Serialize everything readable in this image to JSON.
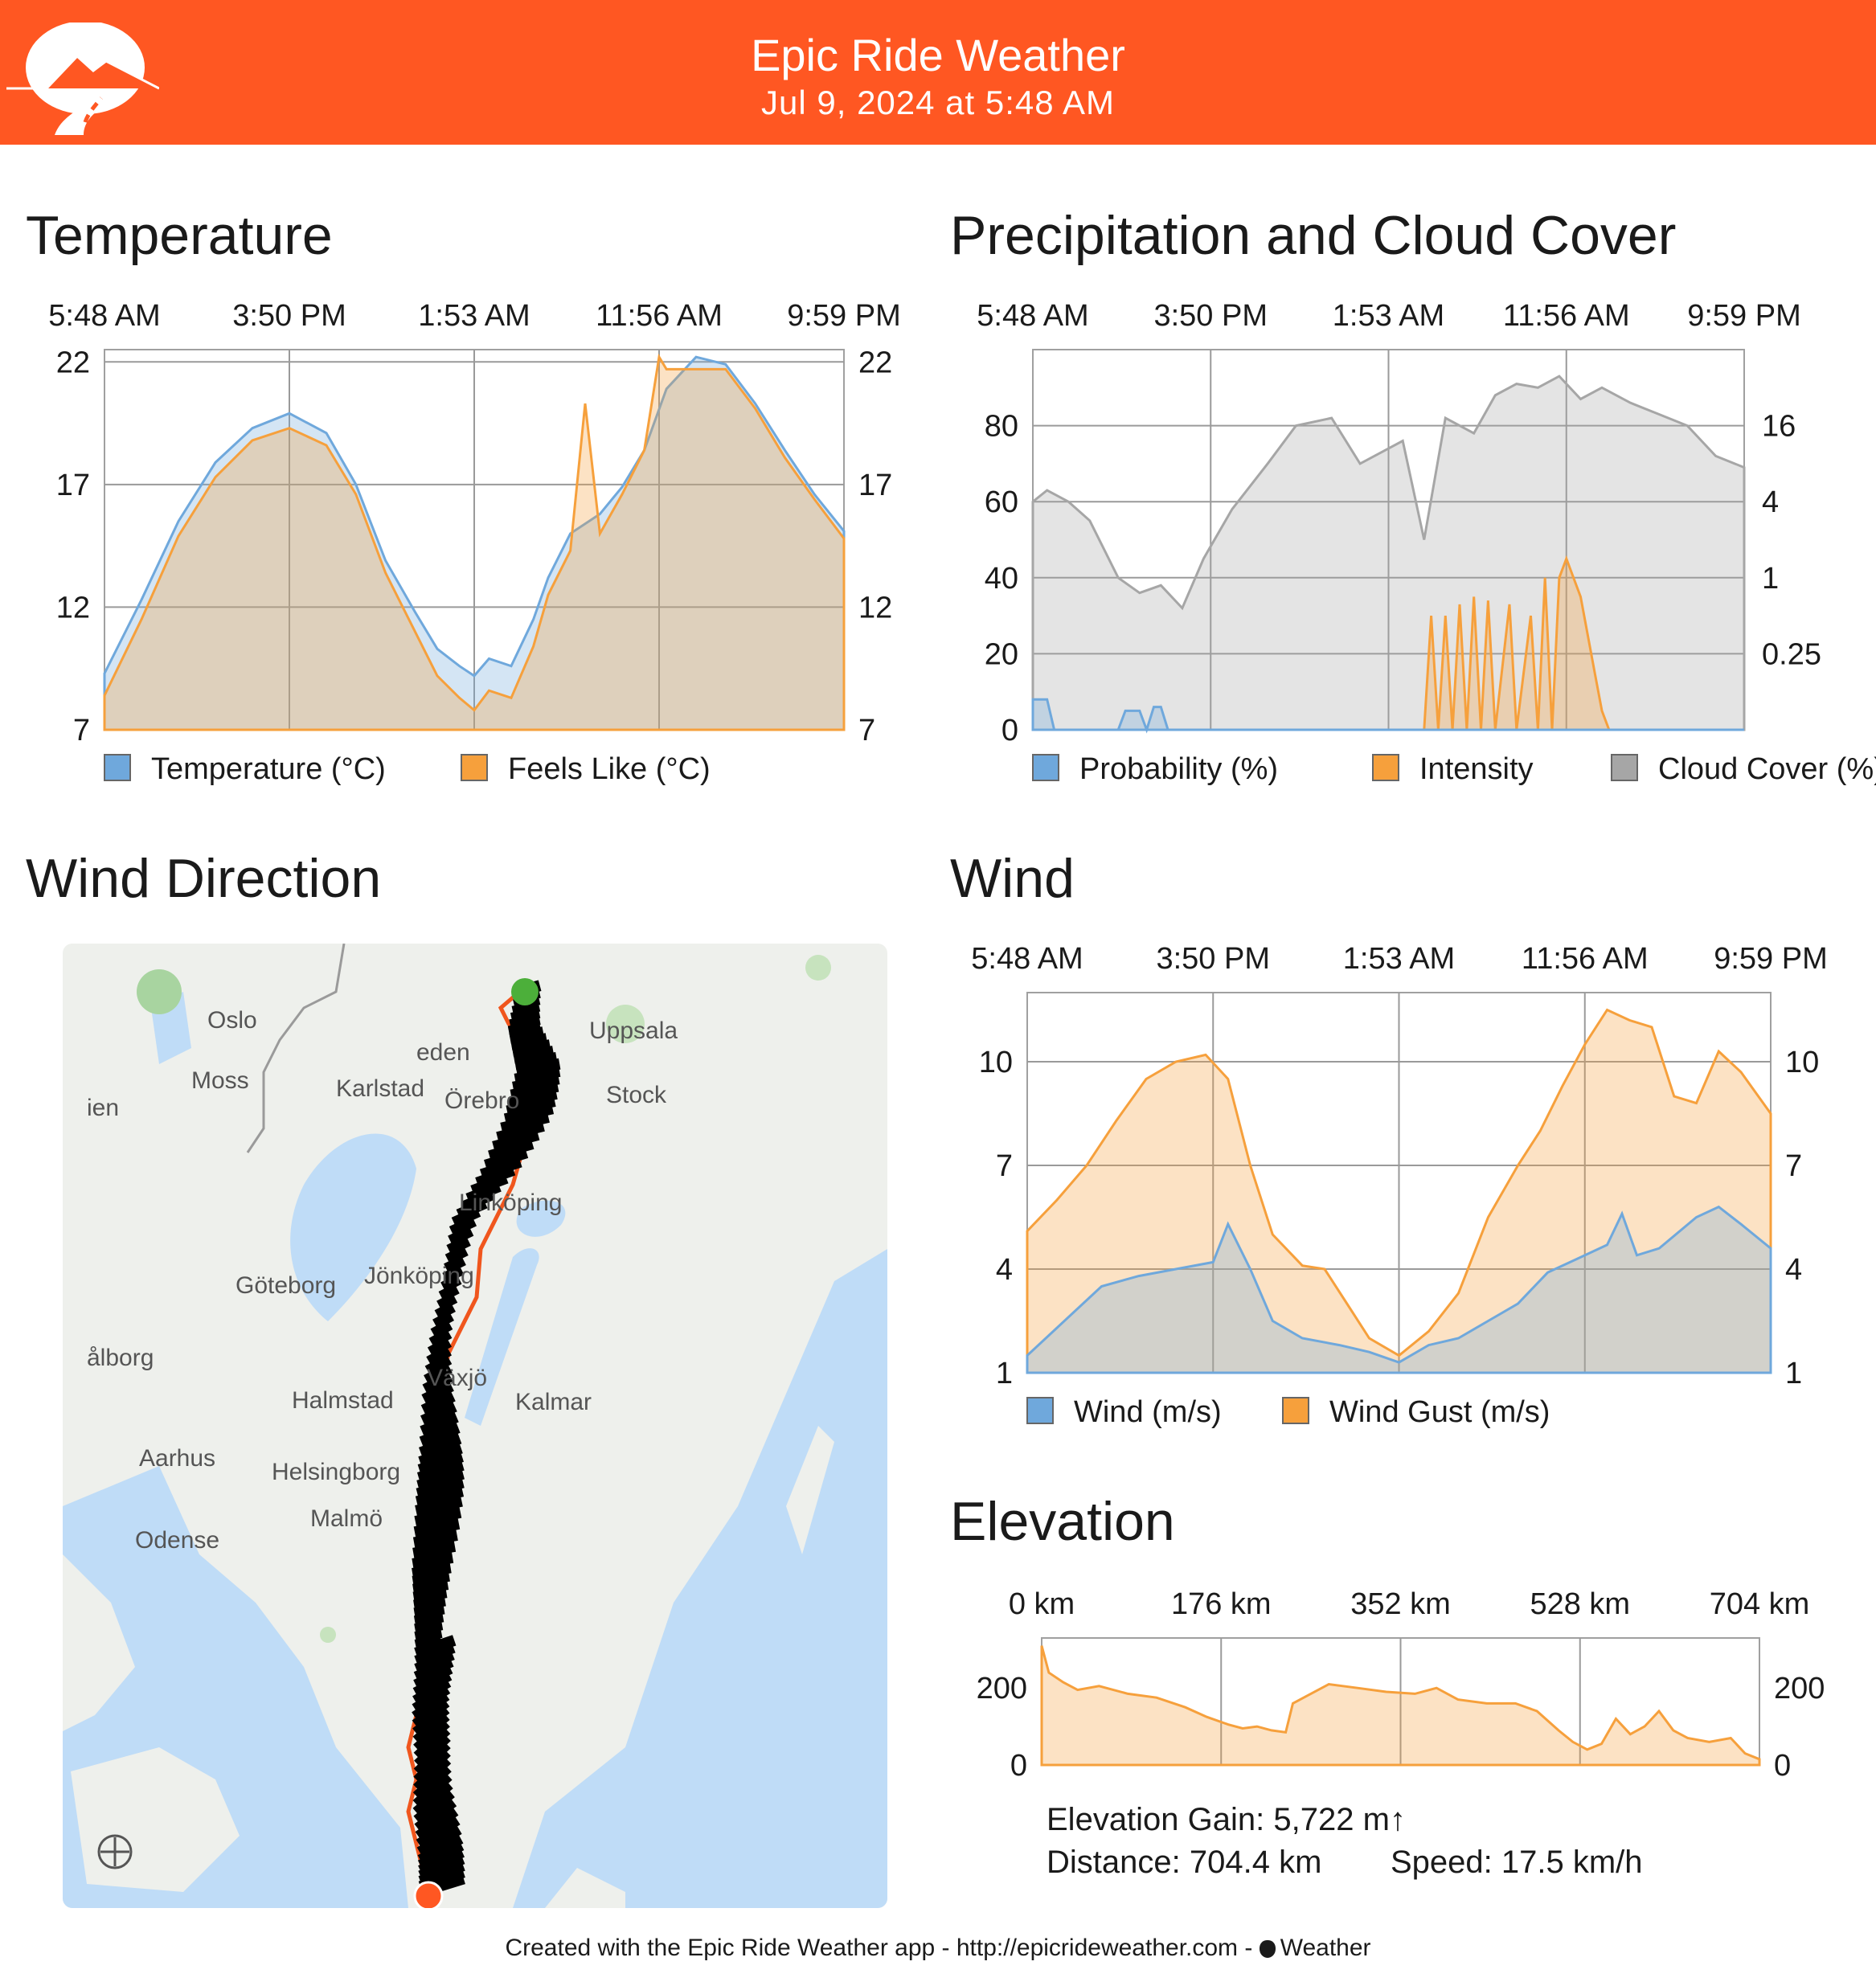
{
  "header": {
    "app_title": "Epic Ride Weather",
    "timestamp": "Jul 9, 2024 at 5:48 AM",
    "logo_icon": "mountain-road-icon",
    "color": "#ff5722"
  },
  "temperature": {
    "title": "Temperature",
    "chart_data": {
      "type": "area",
      "x_ticks": [
        "5:48 AM",
        "3:50 PM",
        "1:53 AM",
        "11:56 AM",
        "9:59 PM"
      ],
      "y_ticks": [
        "22",
        "17",
        "12",
        "7"
      ],
      "ylim": [
        7,
        22.5
      ],
      "series": [
        {
          "name": "Temperature (°C)",
          "color": "#6fa8dc",
          "points": [
            [
              0,
              9.3
            ],
            [
              0.05,
              12.3
            ],
            [
              0.1,
              15.5
            ],
            [
              0.15,
              17.9
            ],
            [
              0.2,
              19.3
            ],
            [
              0.25,
              19.9
            ],
            [
              0.3,
              19.1
            ],
            [
              0.34,
              17
            ],
            [
              0.38,
              13.9
            ],
            [
              0.42,
              11.8
            ],
            [
              0.45,
              10.3
            ],
            [
              0.48,
              9.6
            ],
            [
              0.5,
              9.2
            ],
            [
              0.52,
              9.9
            ],
            [
              0.55,
              9.6
            ],
            [
              0.58,
              11.5
            ],
            [
              0.6,
              13.2
            ],
            [
              0.63,
              15
            ],
            [
              0.67,
              15.8
            ],
            [
              0.7,
              16.9
            ],
            [
              0.73,
              18.4
            ],
            [
              0.76,
              20.9
            ],
            [
              0.8,
              22.2
            ],
            [
              0.84,
              21.9
            ],
            [
              0.88,
              20.3
            ],
            [
              0.92,
              18.4
            ],
            [
              0.96,
              16.6
            ],
            [
              1,
              15.1
            ]
          ]
        },
        {
          "name": "Feels Like (°C)",
          "color": "#f6a03c",
          "points": [
            [
              0,
              8.4
            ],
            [
              0.05,
              11.5
            ],
            [
              0.1,
              14.9
            ],
            [
              0.15,
              17.3
            ],
            [
              0.2,
              18.8
            ],
            [
              0.25,
              19.3
            ],
            [
              0.3,
              18.6
            ],
            [
              0.34,
              16.6
            ],
            [
              0.38,
              13.4
            ],
            [
              0.42,
              11
            ],
            [
              0.45,
              9.2
            ],
            [
              0.48,
              8.3
            ],
            [
              0.5,
              7.8
            ],
            [
              0.52,
              8.6
            ],
            [
              0.55,
              8.3
            ],
            [
              0.58,
              10.4
            ],
            [
              0.6,
              12.5
            ],
            [
              0.63,
              14.3
            ],
            [
              0.65,
              20.3
            ],
            [
              0.67,
              15
            ],
            [
              0.7,
              16.6
            ],
            [
              0.73,
              18.4
            ],
            [
              0.75,
              22.2
            ],
            [
              0.76,
              21.7
            ],
            [
              0.8,
              21.7
            ],
            [
              0.84,
              21.7
            ],
            [
              0.88,
              20.1
            ],
            [
              0.92,
              18.1
            ],
            [
              0.96,
              16.4
            ],
            [
              1,
              14.8
            ]
          ]
        }
      ]
    },
    "legend": [
      "Temperature (°C)",
      "Feels Like (°C)"
    ]
  },
  "precipitation": {
    "title": "Precipitation and Cloud Cover",
    "chart_data": {
      "type": "area",
      "x_ticks": [
        "5:48 AM",
        "3:50 PM",
        "1:53 AM",
        "11:56 AM",
        "9:59 PM"
      ],
      "y_left_ticks": [
        "80",
        "60",
        "40",
        "20",
        "0"
      ],
      "y_right_ticks": [
        "16",
        "4",
        "1",
        "0.25"
      ],
      "ylim": [
        0,
        100
      ],
      "series": [
        {
          "name": "Probability (%)",
          "color": "#6fa8dc",
          "points": [
            [
              0,
              8
            ],
            [
              0.02,
              8
            ],
            [
              0.03,
              0
            ],
            [
              0.12,
              0
            ],
            [
              0.13,
              5
            ],
            [
              0.15,
              5
            ],
            [
              0.16,
              0
            ],
            [
              0.17,
              6
            ],
            [
              0.18,
              6
            ],
            [
              0.19,
              0
            ],
            [
              1,
              0
            ]
          ]
        },
        {
          "name": "Intensity",
          "color": "#f6a03c",
          "points": [
            [
              0,
              0
            ],
            [
              0.55,
              0
            ],
            [
              0.56,
              30
            ],
            [
              0.57,
              0
            ],
            [
              0.58,
              30
            ],
            [
              0.59,
              0
            ],
            [
              0.6,
              33
            ],
            [
              0.61,
              0
            ],
            [
              0.62,
              35
            ],
            [
              0.63,
              0
            ],
            [
              0.64,
              34
            ],
            [
              0.65,
              0
            ],
            [
              0.67,
              33
            ],
            [
              0.68,
              0
            ],
            [
              0.7,
              30
            ],
            [
              0.71,
              0
            ],
            [
              0.72,
              40
            ],
            [
              0.73,
              0
            ],
            [
              0.74,
              40
            ],
            [
              0.75,
              45
            ],
            [
              0.77,
              35
            ],
            [
              0.79,
              15
            ],
            [
              0.8,
              5
            ],
            [
              0.81,
              0
            ],
            [
              1,
              0
            ]
          ]
        },
        {
          "name": "Cloud Cover (%)",
          "color": "#a6a6a6",
          "points": [
            [
              0,
              60
            ],
            [
              0.02,
              63
            ],
            [
              0.05,
              60
            ],
            [
              0.08,
              55
            ],
            [
              0.12,
              40
            ],
            [
              0.15,
              36
            ],
            [
              0.18,
              38
            ],
            [
              0.21,
              32
            ],
            [
              0.24,
              45
            ],
            [
              0.28,
              58
            ],
            [
              0.33,
              70
            ],
            [
              0.37,
              80
            ],
            [
              0.42,
              82
            ],
            [
              0.46,
              70
            ],
            [
              0.52,
              76
            ],
            [
              0.55,
              50
            ],
            [
              0.58,
              82
            ],
            [
              0.62,
              78
            ],
            [
              0.65,
              88
            ],
            [
              0.68,
              91
            ],
            [
              0.71,
              90
            ],
            [
              0.74,
              93
            ],
            [
              0.77,
              87
            ],
            [
              0.8,
              90
            ],
            [
              0.84,
              86
            ],
            [
              0.88,
              83
            ],
            [
              0.92,
              80
            ],
            [
              0.96,
              72
            ],
            [
              1,
              69
            ]
          ]
        }
      ]
    },
    "legend": [
      "Probability (%)",
      "Intensity",
      "Cloud Cover (%)"
    ]
  },
  "wind_direction": {
    "title": "Wind Direction",
    "map_labels": [
      "Oslo",
      "Moss",
      "ien",
      "Karlstad",
      "Örebro",
      "Uppsala",
      "Stock",
      "Linköping",
      "Göteborg",
      "Jönköping",
      "Växjö",
      "Kalmar",
      "Halmstad",
      "Aarhus",
      "Helsingborg",
      "Malmö",
      "Odense",
      "ålborg",
      "eden"
    ],
    "start_color": "#4caf3a",
    "end_color": "#ff5722",
    "route_color": "#f0561d"
  },
  "wind": {
    "title": "Wind",
    "chart_data": {
      "type": "area",
      "x_ticks": [
        "5:48 AM",
        "3:50 PM",
        "1:53 AM",
        "11:56 AM",
        "9:59 PM"
      ],
      "y_ticks": [
        "10",
        "7",
        "4",
        "1"
      ],
      "ylim": [
        1,
        12
      ],
      "series": [
        {
          "name": "Wind (m/s)",
          "color": "#6fa8dc",
          "points": [
            [
              0,
              1.5
            ],
            [
              0.04,
              2.3
            ],
            [
              0.1,
              3.5
            ],
            [
              0.15,
              3.8
            ],
            [
              0.2,
              4
            ],
            [
              0.25,
              4.2
            ],
            [
              0.27,
              5.3
            ],
            [
              0.3,
              4
            ],
            [
              0.33,
              2.5
            ],
            [
              0.37,
              2
            ],
            [
              0.42,
              1.8
            ],
            [
              0.46,
              1.6
            ],
            [
              0.5,
              1.3
            ],
            [
              0.54,
              1.8
            ],
            [
              0.58,
              2
            ],
            [
              0.62,
              2.5
            ],
            [
              0.66,
              3
            ],
            [
              0.7,
              3.9
            ],
            [
              0.74,
              4.3
            ],
            [
              0.78,
              4.7
            ],
            [
              0.8,
              5.6
            ],
            [
              0.82,
              4.4
            ],
            [
              0.85,
              4.6
            ],
            [
              0.9,
              5.5
            ],
            [
              0.93,
              5.8
            ],
            [
              0.96,
              5.3
            ],
            [
              1,
              4.6
            ]
          ]
        },
        {
          "name": "Wind Gust (m/s)",
          "color": "#f6a03c",
          "points": [
            [
              0,
              5.1
            ],
            [
              0.04,
              6
            ],
            [
              0.08,
              7
            ],
            [
              0.12,
              8.3
            ],
            [
              0.16,
              9.5
            ],
            [
              0.2,
              10
            ],
            [
              0.24,
              10.2
            ],
            [
              0.27,
              9.5
            ],
            [
              0.3,
              7
            ],
            [
              0.33,
              5
            ],
            [
              0.37,
              4.1
            ],
            [
              0.4,
              4
            ],
            [
              0.43,
              3
            ],
            [
              0.46,
              2
            ],
            [
              0.5,
              1.5
            ],
            [
              0.54,
              2.2
            ],
            [
              0.58,
              3.3
            ],
            [
              0.62,
              5.5
            ],
            [
              0.66,
              7
            ],
            [
              0.69,
              8
            ],
            [
              0.72,
              9.3
            ],
            [
              0.75,
              10.5
            ],
            [
              0.78,
              11.5
            ],
            [
              0.81,
              11.2
            ],
            [
              0.84,
              11
            ],
            [
              0.87,
              9
            ],
            [
              0.9,
              8.8
            ],
            [
              0.93,
              10.3
            ],
            [
              0.96,
              9.7
            ],
            [
              1,
              8.5
            ]
          ]
        }
      ]
    },
    "legend": [
      "Wind (m/s)",
      "Wind Gust (m/s)"
    ]
  },
  "elevation": {
    "title": "Elevation",
    "chart_data": {
      "type": "area",
      "x_ticks": [
        "0 km",
        "176 km",
        "352 km",
        "528 km",
        "704 km"
      ],
      "y_ticks": [
        "200",
        "0"
      ],
      "ylim": [
        0,
        330
      ],
      "series": [
        {
          "name": "Elevation (m)",
          "color": "#f6a03c",
          "points": [
            [
              0,
              310
            ],
            [
              0.01,
              240
            ],
            [
              0.03,
              215
            ],
            [
              0.05,
              195
            ],
            [
              0.08,
              205
            ],
            [
              0.12,
              185
            ],
            [
              0.16,
              175
            ],
            [
              0.2,
              150
            ],
            [
              0.23,
              125
            ],
            [
              0.26,
              105
            ],
            [
              0.28,
              95
            ],
            [
              0.3,
              100
            ],
            [
              0.32,
              90
            ],
            [
              0.34,
              85
            ],
            [
              0.35,
              160
            ],
            [
              0.37,
              180
            ],
            [
              0.4,
              210
            ],
            [
              0.44,
              200
            ],
            [
              0.48,
              190
            ],
            [
              0.52,
              185
            ],
            [
              0.55,
              200
            ],
            [
              0.58,
              170
            ],
            [
              0.62,
              160
            ],
            [
              0.66,
              160
            ],
            [
              0.69,
              140
            ],
            [
              0.72,
              90
            ],
            [
              0.74,
              60
            ],
            [
              0.76,
              40
            ],
            [
              0.78,
              55
            ],
            [
              0.8,
              120
            ],
            [
              0.82,
              80
            ],
            [
              0.84,
              100
            ],
            [
              0.86,
              140
            ],
            [
              0.88,
              90
            ],
            [
              0.9,
              70
            ],
            [
              0.93,
              60
            ],
            [
              0.96,
              70
            ],
            [
              0.98,
              30
            ],
            [
              1,
              15
            ]
          ]
        }
      ]
    },
    "gain_text": "Elevation Gain: 5,722 m↑",
    "distance_text": "Distance: 704.4 km",
    "speed_text": "Speed: 17.5 km/h"
  },
  "footer": {
    "credit": "Created with the Epic Ride Weather app - http://epicrideweather.com - ",
    "weather_label": "Weather",
    "apple_icon": "apple-icon"
  }
}
